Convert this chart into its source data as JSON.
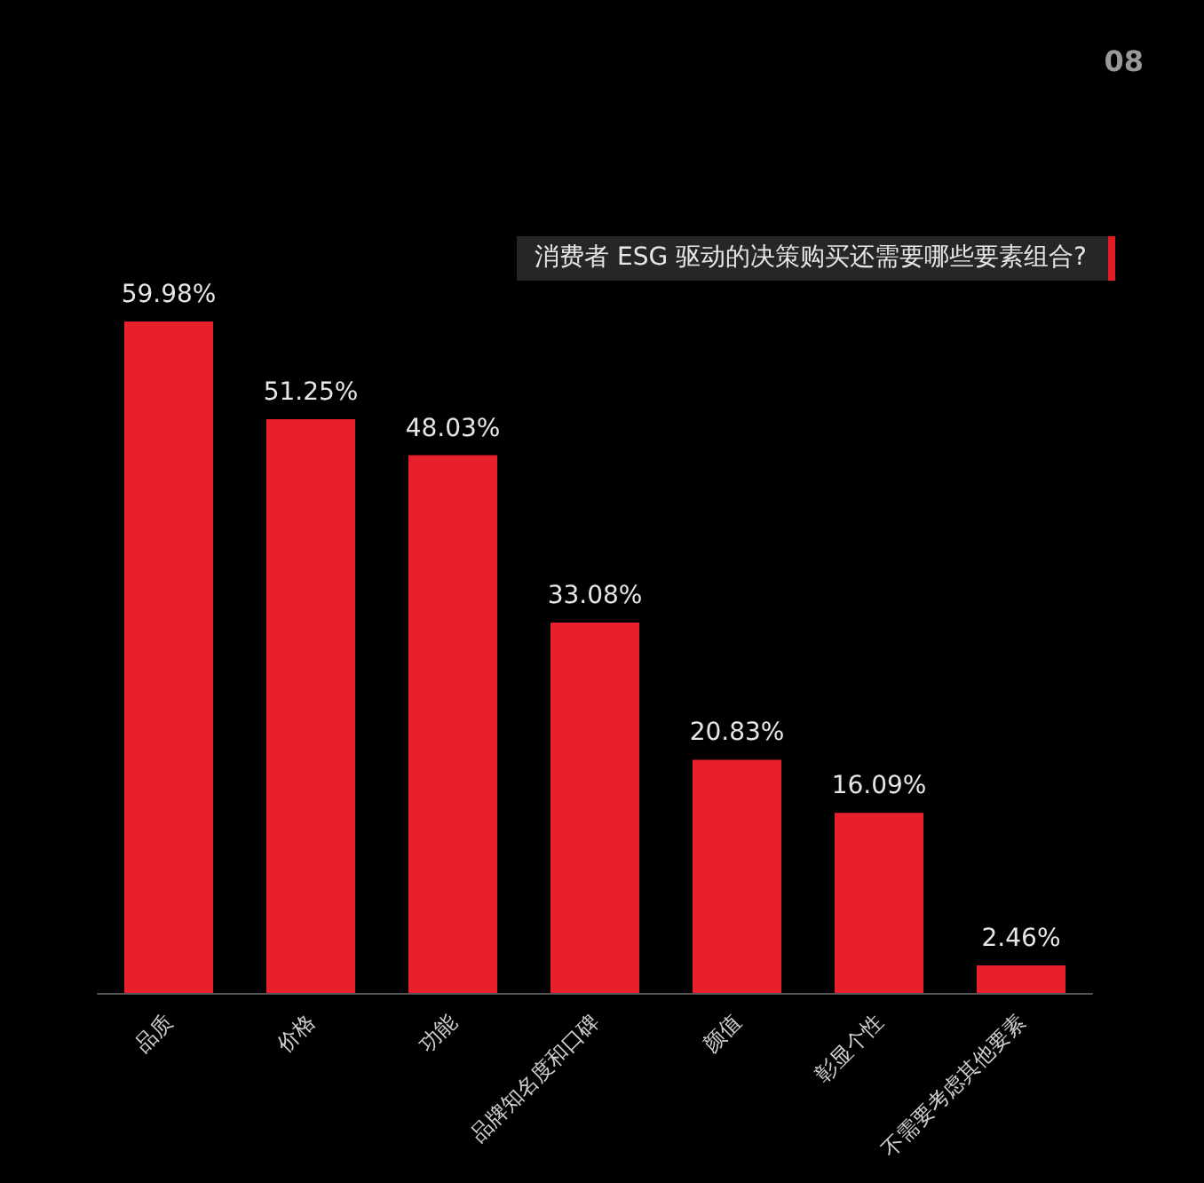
{
  "chart_data": {
    "type": "bar",
    "title": "消费者 ESG 驱动的决策购买还需要哪些要素组合?",
    "categories": [
      "品质",
      "价格",
      "功能",
      "品牌知名度和口碑",
      "颜值",
      "彰显个性",
      "不需要考虑其他要素"
    ],
    "values": [
      59.98,
      51.25,
      48.03,
      33.08,
      20.83,
      16.09,
      2.46
    ],
    "value_labels": [
      "59.98%",
      "51.25%",
      "48.03%",
      "33.08%",
      "20.83%",
      "16.09%",
      "2.46%"
    ],
    "color": "#e8202b",
    "tick_labels": "x",
    "annotations": [
      "08"
    ]
  }
}
